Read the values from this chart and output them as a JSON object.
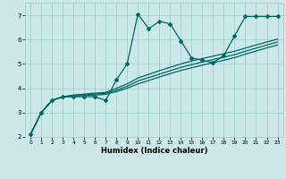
{
  "title": "",
  "xlabel": "Humidex (Indice chaleur)",
  "ylabel": "",
  "xlim": [
    -0.5,
    23.5
  ],
  "ylim": [
    2,
    7.5
  ],
  "yticks": [
    2,
    3,
    4,
    5,
    6,
    7
  ],
  "xticks": [
    0,
    1,
    2,
    3,
    4,
    5,
    6,
    7,
    8,
    9,
    10,
    11,
    12,
    13,
    14,
    15,
    16,
    17,
    18,
    19,
    20,
    21,
    22,
    23
  ],
  "bg_color": "#cce8e8",
  "line_color": "#006666",
  "grid_color": "#99cccc",
  "figsize": [
    3.2,
    2.0
  ],
  "dpi": 100,
  "lines": [
    {
      "x": [
        0,
        1,
        2,
        3,
        4,
        5,
        6,
        7,
        8,
        9,
        10,
        11,
        12,
        13,
        14,
        15,
        16,
        17,
        18,
        19,
        20,
        21,
        22,
        23
      ],
      "y": [
        2.1,
        3.0,
        3.5,
        3.65,
        3.65,
        3.65,
        3.65,
        3.5,
        4.35,
        5.0,
        7.05,
        6.45,
        6.75,
        6.65,
        5.95,
        5.25,
        5.15,
        5.05,
        5.35,
        6.15,
        6.95,
        6.95,
        6.95,
        6.95
      ],
      "marker": "D",
      "markersize": 2.0,
      "linewidth": 0.9
    },
    {
      "x": [
        0,
        1,
        2,
        3,
        4,
        5,
        6,
        7,
        8,
        9,
        10,
        11,
        12,
        13,
        14,
        15,
        16,
        17,
        18,
        19,
        20,
        21,
        22,
        23
      ],
      "y": [
        2.1,
        3.0,
        3.5,
        3.65,
        3.72,
        3.76,
        3.8,
        3.83,
        4.0,
        4.18,
        4.42,
        4.57,
        4.72,
        4.86,
        5.0,
        5.12,
        5.22,
        5.32,
        5.42,
        5.52,
        5.65,
        5.78,
        5.9,
        6.02
      ],
      "marker": null,
      "markersize": 0,
      "linewidth": 0.9
    },
    {
      "x": [
        0,
        1,
        2,
        3,
        4,
        5,
        6,
        7,
        8,
        9,
        10,
        11,
        12,
        13,
        14,
        15,
        16,
        17,
        18,
        19,
        20,
        21,
        22,
        23
      ],
      "y": [
        2.1,
        3.0,
        3.5,
        3.65,
        3.7,
        3.73,
        3.76,
        3.79,
        3.92,
        4.08,
        4.3,
        4.44,
        4.58,
        4.72,
        4.86,
        4.97,
        5.08,
        5.18,
        5.28,
        5.38,
        5.52,
        5.65,
        5.78,
        5.9
      ],
      "marker": null,
      "markersize": 0,
      "linewidth": 0.9
    },
    {
      "x": [
        0,
        1,
        2,
        3,
        4,
        5,
        6,
        7,
        8,
        9,
        10,
        11,
        12,
        13,
        14,
        15,
        16,
        17,
        18,
        19,
        20,
        21,
        22,
        23
      ],
      "y": [
        2.1,
        3.0,
        3.5,
        3.65,
        3.68,
        3.7,
        3.72,
        3.75,
        3.86,
        4.0,
        4.18,
        4.32,
        4.46,
        4.6,
        4.73,
        4.84,
        4.95,
        5.05,
        5.15,
        5.26,
        5.4,
        5.53,
        5.66,
        5.78
      ],
      "marker": null,
      "markersize": 0,
      "linewidth": 0.9
    }
  ]
}
